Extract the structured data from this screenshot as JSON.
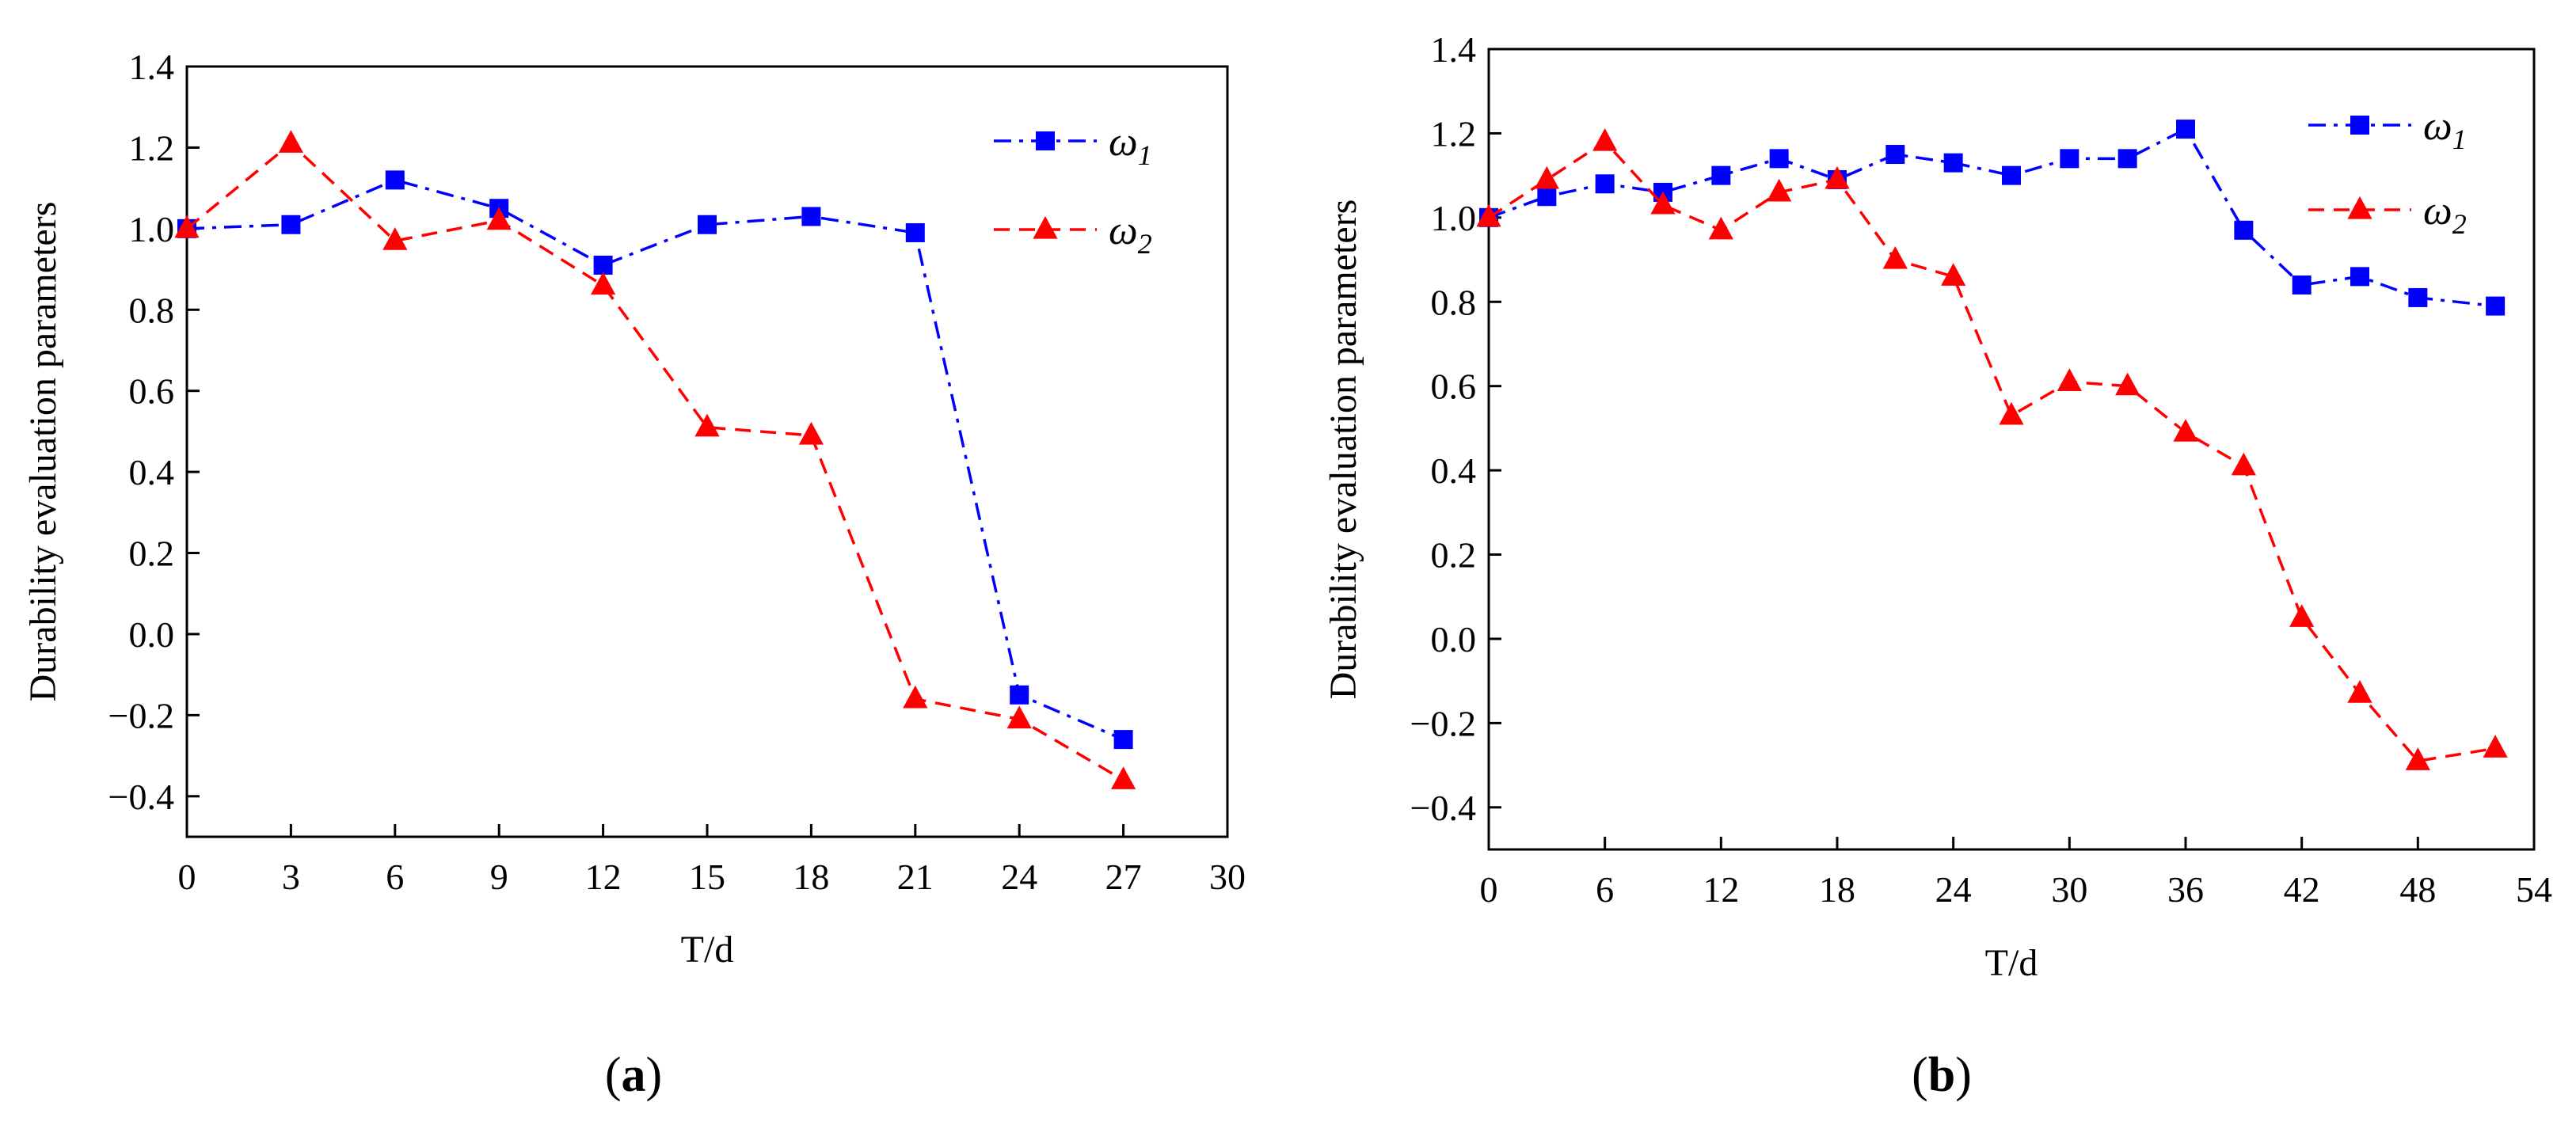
{
  "figure": {
    "panels": [
      "a",
      "b"
    ]
  },
  "colors": {
    "series1": "#0000ff",
    "series2": "#ff0000",
    "axis": "#000000"
  },
  "chart_data": [
    {
      "id": "a",
      "panel_label": "a",
      "type": "line",
      "title": "",
      "xlabel": "T/d",
      "ylabel": "Durability evaluation parameters",
      "xlim": [
        0,
        30
      ],
      "ylim": [
        -0.5,
        1.4
      ],
      "xticks": [
        0,
        3,
        6,
        9,
        12,
        15,
        18,
        21,
        24,
        27,
        30
      ],
      "yticks": [
        -0.4,
        -0.2,
        0.0,
        0.2,
        0.4,
        0.6,
        0.8,
        1.0,
        1.2,
        1.4
      ],
      "legend_position": "top-right",
      "series": [
        {
          "name": "ω",
          "subscript": "1",
          "marker": "square",
          "line_style": "dash-dot",
          "color": "#0000ff",
          "x": [
            0,
            3,
            6,
            9,
            12,
            15,
            18,
            21,
            24,
            27
          ],
          "values": [
            1.0,
            1.01,
            1.12,
            1.05,
            0.91,
            1.01,
            1.03,
            0.99,
            -0.15,
            -0.26
          ]
        },
        {
          "name": "ω",
          "subscript": "2",
          "marker": "triangle",
          "line_style": "dashed",
          "color": "#ff0000",
          "x": [
            0,
            3,
            6,
            9,
            12,
            15,
            18,
            21,
            24,
            27
          ],
          "values": [
            1.0,
            1.21,
            0.97,
            1.02,
            0.86,
            0.51,
            0.49,
            -0.16,
            -0.21,
            -0.36
          ]
        }
      ]
    },
    {
      "id": "b",
      "panel_label": "b",
      "type": "line",
      "title": "",
      "xlabel": "T/d",
      "ylabel": "Durability evaluation parameters",
      "xlim": [
        0,
        54
      ],
      "ylim": [
        -0.5,
        1.4
      ],
      "xticks": [
        0,
        6,
        12,
        18,
        24,
        30,
        36,
        42,
        48,
        54
      ],
      "yticks": [
        -0.4,
        -0.2,
        0.0,
        0.2,
        0.4,
        0.6,
        0.8,
        1.0,
        1.2,
        1.4
      ],
      "legend_position": "top-right",
      "series": [
        {
          "name": "ω",
          "subscript": "1",
          "marker": "square",
          "line_style": "dash-dot",
          "color": "#0000ff",
          "x": [
            0,
            3,
            6,
            9,
            12,
            15,
            18,
            21,
            24,
            27,
            30,
            33,
            36,
            39,
            42,
            45,
            48,
            52
          ],
          "values": [
            1.0,
            1.05,
            1.08,
            1.06,
            1.1,
            1.14,
            1.09,
            1.15,
            1.13,
            1.1,
            1.14,
            1.14,
            1.21,
            0.97,
            0.84,
            0.86,
            0.81,
            0.79
          ]
        },
        {
          "name": "ω",
          "subscript": "2",
          "marker": "triangle",
          "line_style": "dashed",
          "color": "#ff0000",
          "x": [
            0,
            3,
            6,
            9,
            12,
            15,
            18,
            21,
            24,
            27,
            30,
            33,
            36,
            39,
            42,
            45,
            48,
            52
          ],
          "values": [
            1.0,
            1.09,
            1.18,
            1.03,
            0.97,
            1.06,
            1.09,
            0.9,
            0.86,
            0.53,
            0.61,
            0.6,
            0.49,
            0.41,
            0.05,
            -0.13,
            -0.29,
            -0.26
          ]
        }
      ]
    }
  ]
}
